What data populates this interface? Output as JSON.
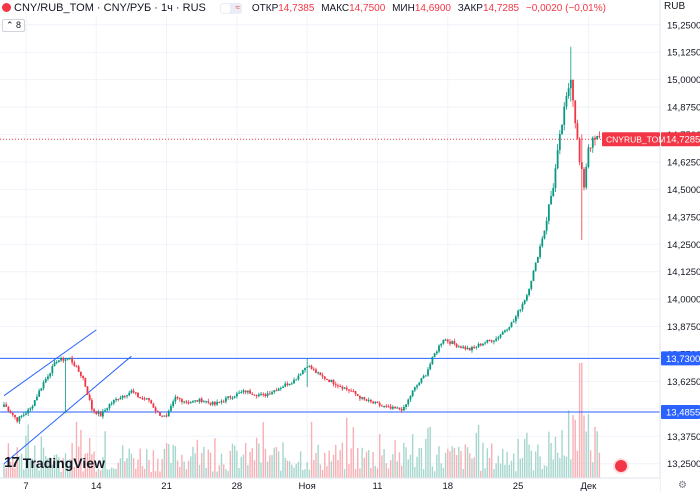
{
  "header": {
    "symbol_title": "CNY/RUB_TOM · CNY/РУБ · 1ч · RUS",
    "badge_text": "≈",
    "ohlc": [
      {
        "label": "ОТКР",
        "value": "14,7385"
      },
      {
        "label": "МАКС",
        "value": "14,7500"
      },
      {
        "label": "МИН",
        "value": "14,6900"
      },
      {
        "label": "ЗАКР",
        "value": "14,7285"
      },
      {
        "label": "",
        "value": "−0,0020 (−0,01%)"
      }
    ],
    "collapse_count": "8",
    "currency": "RUB"
  },
  "logo_text": "TradingView",
  "logo_mark": "17",
  "colors": {
    "up": "#089981",
    "down": "#f23645",
    "line": "#2962ff",
    "grid": "#f0f3fa",
    "axis_text": "#131722",
    "vol_up": "#a6d6cd",
    "vol_down": "#f7b0b5"
  },
  "price_axis": {
    "ticks": [
      "15,2500",
      "15,1250",
      "15,0000",
      "14,8750",
      "14,7500",
      "14,6250",
      "14,5000",
      "14,3750",
      "14,2500",
      "14,1250",
      "14,0000",
      "13,8750",
      "13,7500",
      "13,6250",
      "13,5000",
      "13,3750",
      "13,2500"
    ],
    "tick_values": [
      15.25,
      15.125,
      15.0,
      14.875,
      14.75,
      14.625,
      14.5,
      14.375,
      14.25,
      14.125,
      14.0,
      13.875,
      13.75,
      13.625,
      13.5,
      13.375,
      13.25
    ],
    "range": [
      13.185,
      15.29
    ]
  },
  "time_axis": {
    "labels": [
      "7",
      "14",
      "21",
      "28",
      "Ноя",
      "11",
      "18",
      "25",
      "Дек"
    ],
    "label_index": [
      10,
      42,
      74,
      106,
      138,
      170,
      202,
      234,
      266
    ]
  },
  "markers": [
    {
      "label": "CNYRUB_TOM",
      "value": "14,7285",
      "price": 14.7285,
      "color": "#f23645"
    },
    {
      "label": "",
      "value": "13,7300",
      "price": 13.73,
      "color": "#2962ff"
    },
    {
      "label": "",
      "value": "13,4855",
      "price": 13.4855,
      "color": "#2962ff"
    }
  ],
  "channel": {
    "upper": {
      "from": {
        "i": 0,
        "p": 13.56
      },
      "to": {
        "i": 42,
        "p": 13.86
      }
    },
    "lower": {
      "from": {
        "i": 0,
        "p": 13.25
      },
      "to": {
        "i": 58,
        "p": 13.74
      }
    }
  },
  "chart_data": {
    "type": "candlestick",
    "symbol": "CNY/RUB_TOM",
    "interval": "1h",
    "anchors": [
      [
        0,
        13.52
      ],
      [
        6,
        13.45
      ],
      [
        12,
        13.5
      ],
      [
        18,
        13.62
      ],
      [
        24,
        13.72
      ],
      [
        30,
        13.73
      ],
      [
        36,
        13.64
      ],
      [
        40,
        13.5
      ],
      [
        44,
        13.47
      ],
      [
        48,
        13.52
      ],
      [
        52,
        13.55
      ],
      [
        58,
        13.58
      ],
      [
        62,
        13.55
      ],
      [
        66,
        13.54
      ],
      [
        70,
        13.48
      ],
      [
        74,
        13.46
      ],
      [
        78,
        13.55
      ],
      [
        84,
        13.53
      ],
      [
        90,
        13.54
      ],
      [
        96,
        13.52
      ],
      [
        104,
        13.56
      ],
      [
        110,
        13.58
      ],
      [
        118,
        13.56
      ],
      [
        126,
        13.6
      ],
      [
        132,
        13.63
      ],
      [
        138,
        13.7
      ],
      [
        144,
        13.65
      ],
      [
        150,
        13.62
      ],
      [
        158,
        13.58
      ],
      [
        164,
        13.54
      ],
      [
        170,
        13.52
      ],
      [
        176,
        13.5
      ],
      [
        182,
        13.5
      ],
      [
        186,
        13.58
      ],
      [
        192,
        13.66
      ],
      [
        196,
        13.75
      ],
      [
        200,
        13.82
      ],
      [
        206,
        13.79
      ],
      [
        212,
        13.77
      ],
      [
        218,
        13.8
      ],
      [
        224,
        13.82
      ],
      [
        232,
        13.9
      ],
      [
        238,
        14.02
      ],
      [
        242,
        14.16
      ],
      [
        246,
        14.32
      ],
      [
        250,
        14.52
      ],
      [
        254,
        14.8
      ],
      [
        258,
        15.02
      ],
      [
        262,
        14.62
      ],
      [
        264,
        14.52
      ],
      [
        266,
        14.7
      ],
      [
        270,
        14.7285
      ]
    ],
    "spikes": [
      {
        "i": 258,
        "high": 15.15,
        "low": 14.9
      },
      {
        "i": 263,
        "high": 14.75,
        "low": 14.27
      },
      {
        "i": 28,
        "high": 13.73,
        "low": 13.48
      },
      {
        "i": 138,
        "high": 13.73,
        "low": 13.6
      }
    ]
  }
}
